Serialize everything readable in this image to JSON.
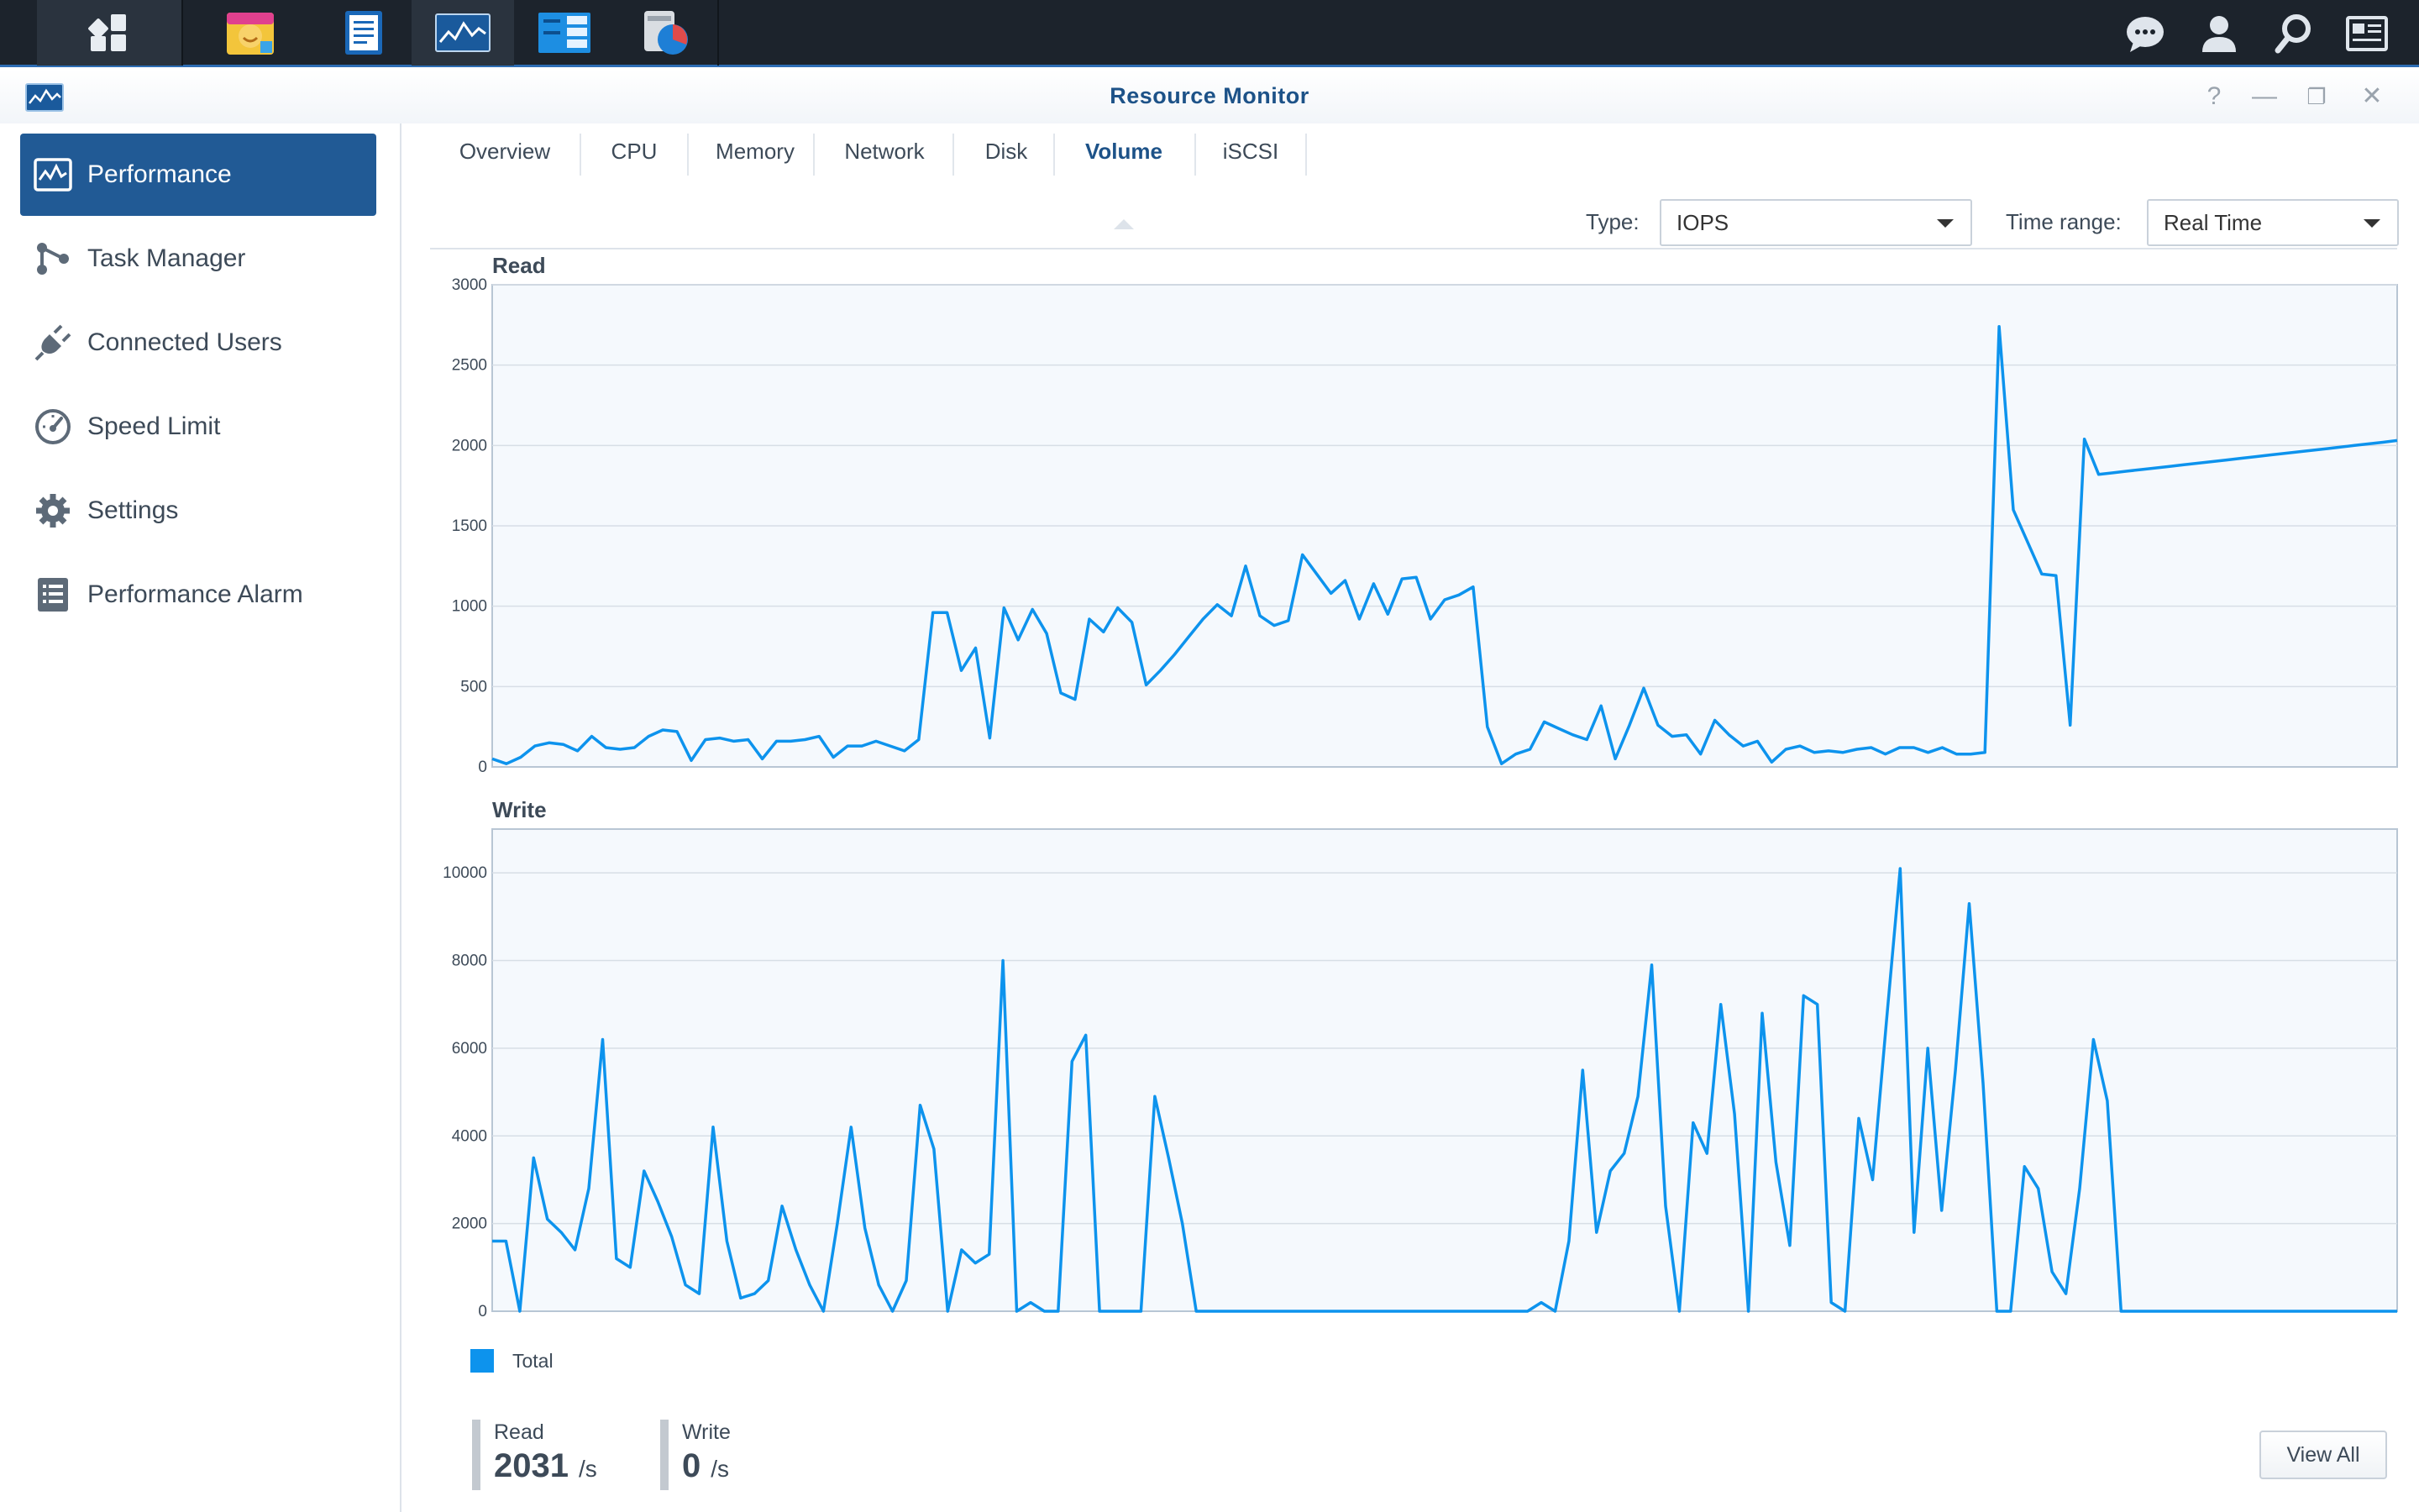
{
  "taskbar": {
    "apps": [
      {
        "icon": "main-menu-grid-icon"
      },
      {
        "icon": "photo-station-icon"
      },
      {
        "icon": "note-icon"
      },
      {
        "icon": "resource-monitor-icon"
      },
      {
        "icon": "storage-manager-icon"
      },
      {
        "icon": "disk-usage-icon"
      }
    ],
    "tray": [
      "chat-icon",
      "user-icon",
      "search-icon",
      "widgets-icon"
    ]
  },
  "window": {
    "title": "Resource Monitor",
    "controls": {
      "help": "?",
      "minimize": "—",
      "restore": "❐",
      "close": "✕"
    }
  },
  "sidebar": {
    "items": [
      {
        "label": "Performance",
        "icon": "performance-icon",
        "active": true
      },
      {
        "label": "Task Manager",
        "icon": "task-manager-icon"
      },
      {
        "label": "Connected Users",
        "icon": "plug-icon"
      },
      {
        "label": "Speed Limit",
        "icon": "speedometer-icon"
      },
      {
        "label": "Settings",
        "icon": "gear-icon"
      },
      {
        "label": "Performance Alarm",
        "icon": "list-icon"
      }
    ]
  },
  "tabs": [
    {
      "label": "Overview"
    },
    {
      "label": "CPU"
    },
    {
      "label": "Memory"
    },
    {
      "label": "Network"
    },
    {
      "label": "Disk"
    },
    {
      "label": "Volume",
      "active": true
    },
    {
      "label": "iSCSI"
    }
  ],
  "controls": {
    "type_label": "Type:",
    "type_value": "IOPS",
    "range_label": "Time range:",
    "range_value": "Real Time"
  },
  "colors": {
    "accent": "#215a95",
    "series": "#0d93ed",
    "plot_bg": "#f5f9fd"
  },
  "chart_data": [
    {
      "type": "line",
      "title": "Read",
      "ylim": [
        0,
        3000
      ],
      "yticks": [
        0,
        500,
        1000,
        1500,
        2000,
        2500,
        3000
      ],
      "grid": true,
      "series": [
        {
          "name": "Total",
          "values": [
            50,
            20,
            60,
            130,
            150,
            140,
            100,
            190,
            120,
            110,
            120,
            190,
            230,
            220,
            40,
            170,
            180,
            160,
            170,
            50,
            160,
            160,
            170,
            190,
            60,
            130,
            130,
            160,
            130,
            100,
            170,
            960,
            960,
            600,
            740,
            180,
            990,
            790,
            980,
            830,
            460,
            420,
            920,
            840,
            990,
            900,
            510,
            600,
            700,
            810,
            920,
            1010,
            940,
            1250,
            940,
            880,
            910,
            1320,
            1200,
            1080,
            1160,
            920,
            1140,
            950,
            1170,
            1180,
            920,
            1040,
            1070,
            1120,
            250,
            20,
            80,
            110,
            280,
            240,
            200,
            170,
            380,
            50,
            260,
            490,
            260,
            190,
            200,
            80,
            290,
            200,
            130,
            160,
            30,
            110,
            130,
            90,
            100,
            90,
            110,
            120,
            80,
            120,
            120,
            90,
            120,
            80,
            80,
            90,
            2740,
            1600,
            1400,
            1200,
            1190,
            260,
            2040,
            1820,
            1830,
            1840,
            1850,
            1860,
            1870,
            1880,
            1890,
            1900,
            1910,
            1920,
            1930,
            1940,
            1950,
            1960,
            1970,
            1980,
            1990,
            2000,
            2010,
            2020,
            2031
          ]
        }
      ]
    },
    {
      "type": "line",
      "title": "Write",
      "ylim": [
        0,
        11000
      ],
      "yticks": [
        0,
        2000,
        4000,
        6000,
        8000,
        10000
      ],
      "grid": true,
      "series": [
        {
          "name": "Total",
          "values": [
            1600,
            1600,
            0,
            3500,
            2100,
            1800,
            1400,
            2800,
            6200,
            1200,
            1000,
            3200,
            2500,
            1700,
            600,
            400,
            4200,
            1600,
            300,
            400,
            700,
            2400,
            1400,
            600,
            0,
            2000,
            4200,
            1900,
            600,
            0,
            700,
            4700,
            3700,
            0,
            1400,
            1100,
            1300,
            8000,
            0,
            200,
            0,
            0,
            5700,
            6300,
            0,
            0,
            0,
            0,
            4900,
            3500,
            2000,
            0,
            0,
            0,
            0,
            0,
            0,
            0,
            0,
            0,
            0,
            0,
            0,
            0,
            0,
            0,
            0,
            0,
            0,
            0,
            0,
            0,
            0,
            0,
            0,
            0,
            200,
            0,
            1600,
            5500,
            1800,
            3200,
            3600,
            4900,
            7900,
            2400,
            0,
            4300,
            3600,
            7000,
            4500,
            0,
            6800,
            3400,
            1500,
            7200,
            7000,
            200,
            0,
            4400,
            3000,
            6600,
            10100,
            1800,
            6000,
            2300,
            5500,
            9300,
            5200,
            0,
            0,
            3300,
            2800,
            900,
            400,
            2800,
            6200,
            4800,
            0,
            0,
            0,
            0,
            0,
            0,
            0,
            0,
            0,
            0,
            0,
            0,
            0,
            0,
            0,
            0,
            0,
            0,
            0,
            0,
            0
          ]
        }
      ]
    }
  ],
  "legend": {
    "label": "Total"
  },
  "stats": {
    "read_label": "Read",
    "read_value": "2031",
    "read_unit": "/s",
    "write_label": "Write",
    "write_value": "0",
    "write_unit": "/s"
  },
  "view_all_label": "View All"
}
